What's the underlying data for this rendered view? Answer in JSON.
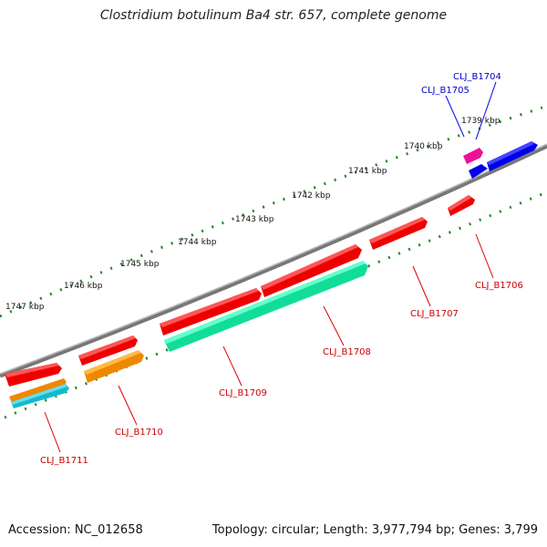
{
  "title": "Clostridium botulinum Ba4 str. 657, complete genome",
  "footer": {
    "accession": "Accession: NC_012658",
    "summary": "Topology: circular; Length: 3,977,794 bp; Genes: 3,799"
  },
  "scale": {
    "tick_labels": [
      "1739 kbp",
      "1740 kbp",
      "1741 kbp",
      "1742 kbp",
      "1743 kbp",
      "1744 kbp",
      "1745 kbp",
      "1746 kbp",
      "1747 kbp"
    ]
  },
  "genes": [
    {
      "label": "CLJ_B1704",
      "color": "#0000ee",
      "label_color": "#0000cc"
    },
    {
      "label": "CLJ_B1705",
      "color": "#ee1199",
      "label_color": "#0000cc"
    },
    {
      "label": "CLJ_B1706",
      "color": "#ee0000",
      "label_color": "#cc0000"
    },
    {
      "label": "CLJ_B1707",
      "color": "#ee0000",
      "label_color": "#cc0000"
    },
    {
      "label": "CLJ_B1708",
      "color": "#11dd99",
      "label_color": "#cc0000"
    },
    {
      "label": "CLJ_B1709",
      "color": "#ee0000",
      "label_color": "#cc0000"
    },
    {
      "label": "CLJ_B1710",
      "color": "#ee8800",
      "label_color": "#cc0000"
    },
    {
      "label": "CLJ_B1711",
      "color": "#11bbcc",
      "label_color": "#cc0000"
    }
  ],
  "colors": {
    "backbone": "#777777",
    "tick": "#228822",
    "red_feature": "#ee0000"
  }
}
